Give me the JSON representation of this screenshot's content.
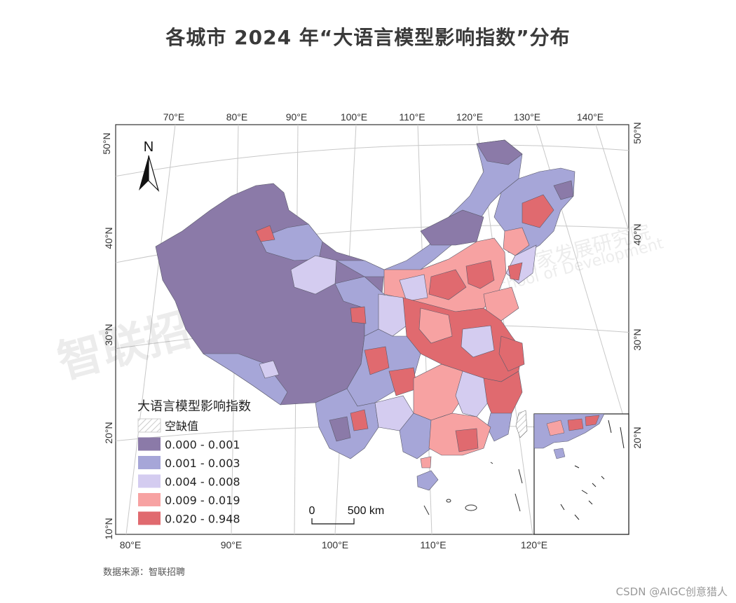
{
  "title": "各城市 2024 年“大语言模型影响指数”分布",
  "source_note": "数据来源：智联招聘",
  "credit": "CSDN @AIGC创意猎人",
  "watermarks": {
    "left": "智联招聘",
    "right_cn": "国家发展研究院",
    "right_en": "School of Development"
  },
  "map": {
    "north_arrow_label": "N",
    "scale_bar": {
      "zero": "0",
      "distance": "500 km"
    },
    "top_lon_labels": [
      "70°E",
      "80°E",
      "90°E",
      "100°E",
      "110°E",
      "120°E",
      "130°E",
      "140°E"
    ],
    "bottom_lon_labels": [
      "80°E",
      "90°E",
      "100°E",
      "110°E",
      "120°E"
    ],
    "left_lat_labels": [
      "50°N",
      "40°N",
      "30°N",
      "20°N",
      "10°N"
    ],
    "right_lat_labels": [
      "50°N",
      "40°N",
      "30°N",
      "20°N"
    ]
  },
  "legend": {
    "title": "大语言模型影响指数",
    "items": [
      {
        "label": "空缺值",
        "color": "hatch"
      },
      {
        "label": "0.000 - 0.001",
        "color": "#8b7aa8"
      },
      {
        "label": "0.001 - 0.003",
        "color": "#a6a6d8"
      },
      {
        "label": "0.004 - 0.008",
        "color": "#d4ccf0"
      },
      {
        "label": "0.009 - 0.019",
        "color": "#f7a2a2"
      },
      {
        "label": "0.020 - 0.948",
        "color": "#e06a6f"
      }
    ]
  },
  "colors": {
    "class1": "#8b7aa8",
    "class2": "#a6a6d8",
    "class3": "#d4ccf0",
    "class4": "#f7a2a2",
    "class5": "#e06a6f",
    "border": "#5a5a6a"
  }
}
